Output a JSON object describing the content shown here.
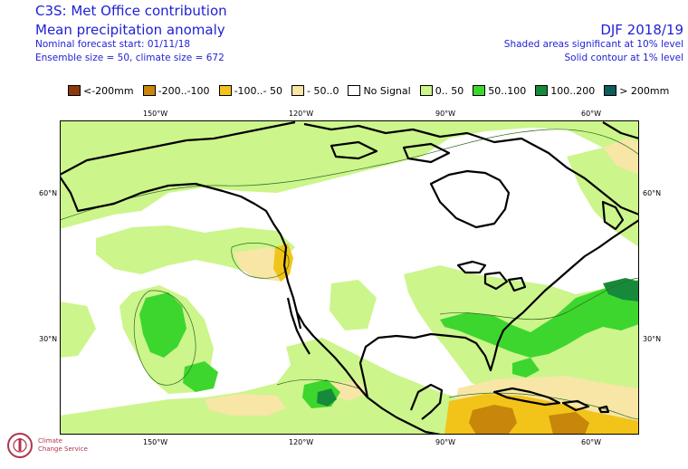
{
  "header": {
    "title": "C3S: Met Office contribution",
    "subtitle": "Mean precipitation anomaly",
    "forecast_start": "Nominal forecast start: 01/11/18",
    "ensemble": "Ensemble size = 50, climate size = 672",
    "season": "DJF 2018/19",
    "significance_shaded": "Shaded areas significant at 10% level",
    "significance_contour": "Solid contour at 1% level"
  },
  "legend": [
    {
      "label": "<-200mm",
      "color": "#8b3a0f"
    },
    {
      "label": "-200..-100",
      "color": "#c8860a"
    },
    {
      "label": "-100..- 50",
      "color": "#f2c419"
    },
    {
      "label": "- 50..0",
      "color": "#f7e6a6"
    },
    {
      "label": "No Signal",
      "color": "#ffffff"
    },
    {
      "label": "0.. 50",
      "color": "#ccf58c"
    },
    {
      "label": "50..100",
      "color": "#3dd62e"
    },
    {
      "label": "100..200",
      "color": "#168a3a"
    },
    {
      "label": "> 200mm",
      "color": "#0d5e5a"
    }
  ],
  "axes": {
    "lon_labels": [
      "150°W",
      "120°W",
      "90°W",
      "60°W"
    ],
    "lat_labels": [
      "60°N",
      "30°N"
    ]
  },
  "logo": {
    "line1": "Climate",
    "line2": "Change Service"
  }
}
